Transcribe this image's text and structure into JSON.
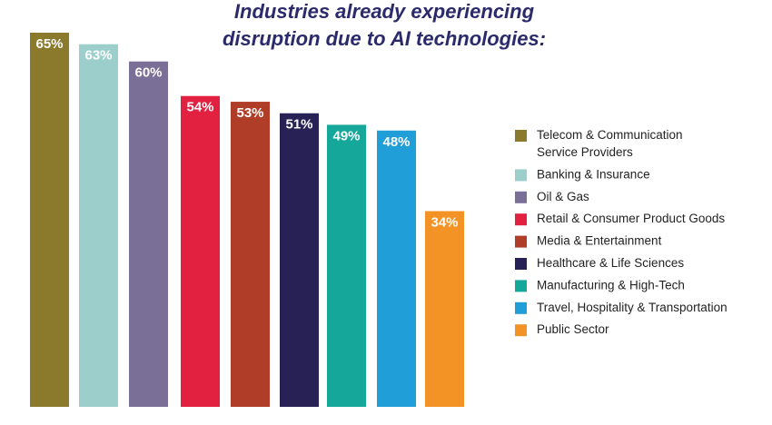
{
  "chart_data": {
    "type": "bar",
    "title": [
      "Industries already experiencing",
      "disruption due to AI technologies:"
    ],
    "categories": [
      "Telecom & Communication Service Providers",
      "Banking & Insurance",
      "Oil & Gas",
      "Retail & Consumer Product Goods",
      "Media & Entertainment",
      "Healthcare & Life Sciences",
      "Manufacturing & High-Tech",
      "Travel, Hospitality & Transportation",
      "Public Sector"
    ],
    "values": [
      65,
      63,
      60,
      54,
      53,
      51,
      49,
      48,
      34
    ],
    "value_labels": [
      "65%",
      "63%",
      "60%",
      "54%",
      "53%",
      "51%",
      "49%",
      "48%",
      "34%"
    ],
    "colors": [
      "#8c7a2c",
      "#9ccfcb",
      "#7a6f96",
      "#e2203f",
      "#b03d27",
      "#272156",
      "#15a89a",
      "#209ed8",
      "#f39325"
    ],
    "legend": [
      [
        "Telecom & Communication",
        "Service Providers"
      ],
      [
        "Banking & Insurance"
      ],
      [
        "Oil & Gas"
      ],
      [
        "Retail & Consumer Product Goods"
      ],
      [
        "Media & Entertainment"
      ],
      [
        "Healthcare & Life Sciences"
      ],
      [
        "Manufacturing & High-Tech"
      ],
      [
        "Travel, Hospitality & Transportation"
      ],
      [
        "Public Sector"
      ]
    ],
    "ylim": [
      0,
      65
    ],
    "xlabel": "",
    "ylabel": "",
    "legend_position": "right"
  }
}
